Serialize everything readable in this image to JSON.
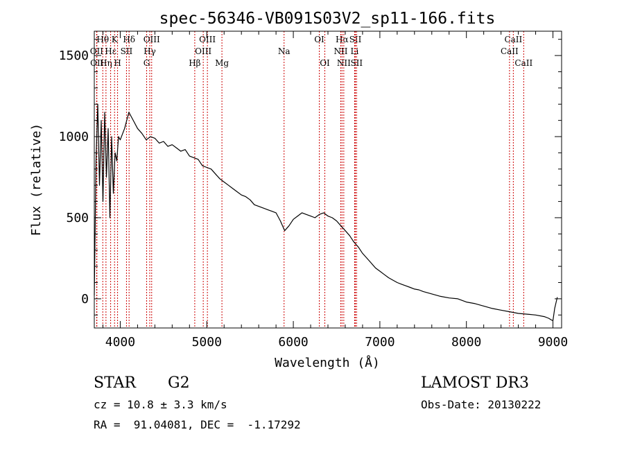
{
  "chart_data": {
    "type": "line",
    "title": "spec-56346-VB091S03V2_sp11-166.fits",
    "xlabel": "Wavelength (Å)",
    "ylabel": "Flux (relative)",
    "xlim": [
      3700,
      9100
    ],
    "ylim": [
      -180,
      1650
    ],
    "xticks": [
      4000,
      5000,
      6000,
      7000,
      8000,
      9000
    ],
    "yticks": [
      0,
      500,
      1000,
      1500
    ],
    "series": [
      {
        "name": "spectrum",
        "x": [
          3700,
          3720,
          3740,
          3760,
          3780,
          3800,
          3820,
          3840,
          3860,
          3880,
          3900,
          3920,
          3940,
          3960,
          3980,
          4000,
          4050,
          4100,
          4150,
          4200,
          4250,
          4300,
          4350,
          4400,
          4450,
          4500,
          4550,
          4600,
          4650,
          4700,
          4750,
          4800,
          4850,
          4900,
          4950,
          5000,
          5050,
          5100,
          5150,
          5200,
          5250,
          5300,
          5350,
          5400,
          5450,
          5500,
          5550,
          5600,
          5650,
          5700,
          5750,
          5800,
          5850,
          5900,
          5950,
          6000,
          6050,
          6100,
          6150,
          6200,
          6250,
          6300,
          6350,
          6400,
          6450,
          6500,
          6550,
          6600,
          6650,
          6700,
          6750,
          6800,
          6850,
          6900,
          6950,
          7000,
          7050,
          7100,
          7150,
          7200,
          7250,
          7300,
          7350,
          7400,
          7450,
          7500,
          7600,
          7700,
          7800,
          7900,
          8000,
          8100,
          8200,
          8300,
          8400,
          8500,
          8600,
          8700,
          8800,
          8900,
          8950,
          8980,
          9000,
          9020,
          9050
        ],
        "y": [
          20,
          850,
          1200,
          700,
          1100,
          600,
          1150,
          750,
          1050,
          500,
          1000,
          650,
          900,
          850,
          1000,
          980,
          1050,
          1150,
          1100,
          1050,
          1020,
          980,
          1000,
          990,
          960,
          970,
          940,
          950,
          930,
          910,
          920,
          880,
          870,
          860,
          820,
          810,
          800,
          770,
          740,
          720,
          700,
          680,
          660,
          640,
          630,
          610,
          580,
          570,
          560,
          550,
          540,
          530,
          480,
          420,
          450,
          490,
          510,
          530,
          520,
          510,
          500,
          520,
          530,
          510,
          500,
          480,
          450,
          420,
          390,
          350,
          320,
          280,
          250,
          220,
          190,
          170,
          150,
          130,
          115,
          100,
          90,
          80,
          70,
          60,
          55,
          45,
          30,
          15,
          5,
          0,
          -20,
          -30,
          -45,
          -60,
          -70,
          -80,
          -90,
          -95,
          -100,
          -110,
          -120,
          -130,
          -135,
          -60,
          10
        ]
      }
    ],
    "spectral_lines": [
      {
        "label": "Hθ",
        "x": 3798,
        "row": 1
      },
      {
        "label": "OII",
        "x": 3727,
        "row": 2
      },
      {
        "label": "OII",
        "x": 3730,
        "row": 3
      },
      {
        "label": "Hη",
        "x": 3835,
        "row": 3
      },
      {
        "label": "Hε",
        "x": 3889,
        "row": 2
      },
      {
        "label": "K",
        "x": 3934,
        "row": 1
      },
      {
        "label": "H",
        "x": 3969,
        "row": 3
      },
      {
        "label": "SII",
        "x": 4072,
        "row": 2
      },
      {
        "label": "Hδ",
        "x": 4102,
        "row": 1
      },
      {
        "label": "OIII",
        "x": 4363,
        "row": 1
      },
      {
        "label": "Hγ",
        "x": 4341,
        "row": 2
      },
      {
        "label": "G",
        "x": 4305,
        "row": 3
      },
      {
        "label": "Hβ",
        "x": 4861,
        "row": 3
      },
      {
        "label": "OIII",
        "x": 5007,
        "row": 1
      },
      {
        "label": "OIII",
        "x": 4959,
        "row": 2
      },
      {
        "label": "Mg",
        "x": 5175,
        "row": 3
      },
      {
        "label": "Na",
        "x": 5893,
        "row": 2
      },
      {
        "label": "OI",
        "x": 6300,
        "row": 1
      },
      {
        "label": "OI",
        "x": 6364,
        "row": 3
      },
      {
        "label": "Hα",
        "x": 6563,
        "row": 1
      },
      {
        "label": "NII",
        "x": 6548,
        "row": 2
      },
      {
        "label": "NII",
        "x": 6583,
        "row": 3
      },
      {
        "label": "SII",
        "x": 6717,
        "row": 1
      },
      {
        "label": "Li",
        "x": 6708,
        "row": 2
      },
      {
        "label": "SII",
        "x": 6731,
        "row": 3
      },
      {
        "label": "CaII",
        "x": 8542,
        "row": 1
      },
      {
        "label": "CaII",
        "x": 8498,
        "row": 2
      },
      {
        "label": "CaII",
        "x": 8662,
        "row": 3
      }
    ]
  },
  "info": {
    "object_class": "STAR",
    "subclass": "G2",
    "survey": "LAMOST DR3",
    "cz": "cz = 10.8 ± 3.3 km/s",
    "obs_date": "Obs-Date: 20130222",
    "coords": "RA =  91.04081, DEC =  -1.17292"
  }
}
